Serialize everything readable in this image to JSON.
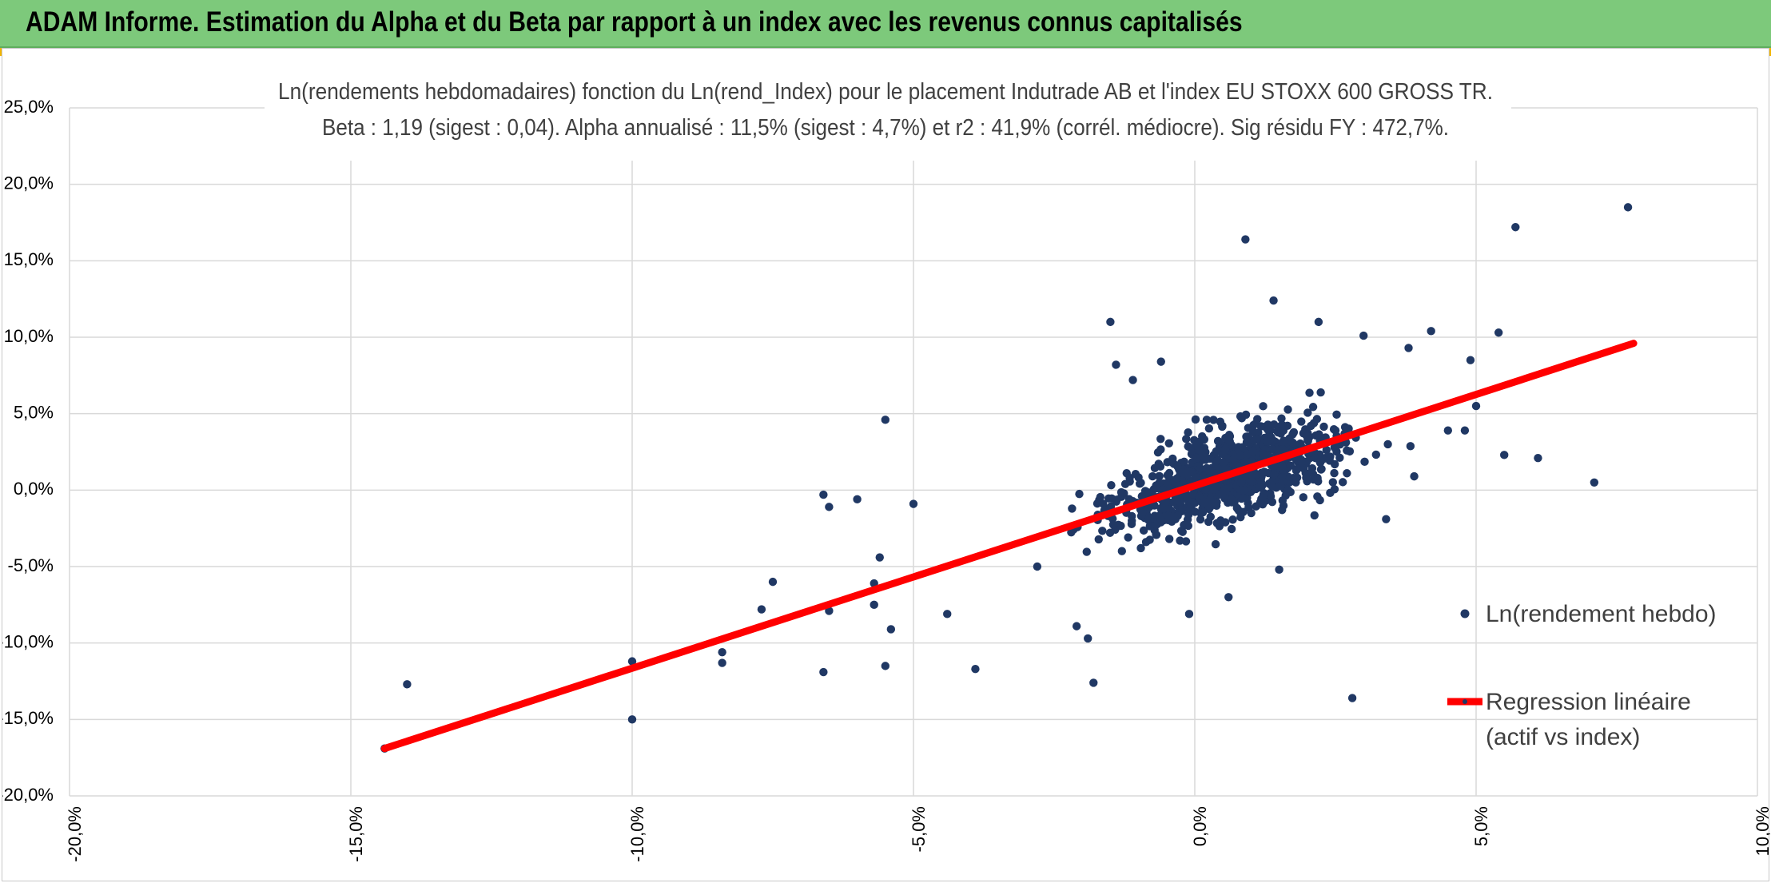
{
  "banner": {
    "title": "ADAM Informe. Estimation du Alpha et du Beta par rapport à un index avec les revenus connus capitalisés"
  },
  "colors": {
    "banner": "#7dc97b",
    "points": "#203864",
    "regression": "#ff0000",
    "grid": "#d9d9d9",
    "corner_marks": "#f2b400"
  },
  "chart_data": {
    "type": "scatter",
    "title": [
      "Ln(rendements hebdomadaires) fonction du Ln(rend_Index) pour le placement Indutrade AB et l'index EU STOXX 600 GROSS TR.",
      "Beta : 1,19 (sigest : 0,04). Alpha annualisé : 11,5% (sigest : 4,7%) et r2 : 41,9% (corrél. médiocre). Sig résidu FY : 472,7%."
    ],
    "xlim": [
      -20,
      10
    ],
    "ylim": [
      -20,
      25
    ],
    "x_ticks": [
      "-20,0%",
      "-15,0%",
      "-10,0%",
      "-5,0%",
      "0,0%",
      "5,0%",
      "10,0%"
    ],
    "y_ticks": [
      "25,0%",
      "20,0%",
      "15,0%",
      "10,0%",
      "5,0%",
      "0,0%",
      "-5,0%",
      "-10,0%",
      "-15,0%",
      "-20,0%"
    ],
    "grid": true,
    "legend_position": "right",
    "series": [
      {
        "name": "Ln(rendement hebdo)",
        "kind": "points",
        "note_points": "representative outliers read from chart; dense core cluster generated around regression line",
        "points": [
          [
            -14.4,
            -16.9
          ],
          [
            -14.0,
            -12.7
          ],
          [
            -10.0,
            -11.2
          ],
          [
            -10.0,
            -15.0
          ],
          [
            -8.4,
            -10.6
          ],
          [
            -8.4,
            -11.3
          ],
          [
            -7.5,
            -6.0
          ],
          [
            -7.7,
            -7.8
          ],
          [
            -6.6,
            -0.3
          ],
          [
            -6.5,
            -1.1
          ],
          [
            -6.0,
            -0.6
          ],
          [
            -6.5,
            -7.9
          ],
          [
            -6.6,
            -11.9
          ],
          [
            -5.5,
            4.6
          ],
          [
            -5.5,
            -11.5
          ],
          [
            -5.4,
            -9.1
          ],
          [
            -5.0,
            -0.9
          ],
          [
            -5.6,
            -4.4
          ],
          [
            -5.7,
            -6.1
          ],
          [
            -5.7,
            -7.5
          ],
          [
            -3.9,
            -11.7
          ],
          [
            -1.8,
            -12.6
          ],
          [
            -1.9,
            -9.7
          ],
          [
            -1.5,
            11.0
          ],
          [
            -1.4,
            8.2
          ],
          [
            -1.1,
            7.2
          ],
          [
            -0.6,
            8.4
          ],
          [
            0.9,
            16.4
          ],
          [
            1.4,
            12.4
          ],
          [
            2.2,
            11.0
          ],
          [
            3.0,
            10.1
          ],
          [
            3.8,
            9.3
          ],
          [
            4.2,
            10.4
          ],
          [
            4.9,
            8.5
          ],
          [
            5.0,
            5.5
          ],
          [
            5.4,
            10.3
          ],
          [
            5.7,
            17.2
          ],
          [
            7.7,
            18.5
          ],
          [
            5.5,
            2.3
          ],
          [
            6.1,
            2.1
          ],
          [
            7.1,
            0.5
          ],
          [
            2.8,
            -13.6
          ],
          [
            4.5,
            3.9
          ],
          [
            4.8,
            3.9
          ],
          [
            3.9,
            0.9
          ],
          [
            3.4,
            -1.9
          ],
          [
            -0.1,
            -8.1
          ],
          [
            -2.1,
            -8.9
          ],
          [
            -4.4,
            -8.1
          ],
          [
            -2.8,
            -5.0
          ],
          [
            0.6,
            -7.0
          ],
          [
            1.5,
            -5.2
          ]
        ]
      },
      {
        "name": "Regression linéaire (actif vs index)",
        "legend_lines": [
          "Regression linéaire",
          "(actif vs index)"
        ],
        "kind": "line",
        "x": [
          -14.4,
          7.8
        ],
        "y": [
          -16.9,
          9.6
        ]
      }
    ]
  }
}
